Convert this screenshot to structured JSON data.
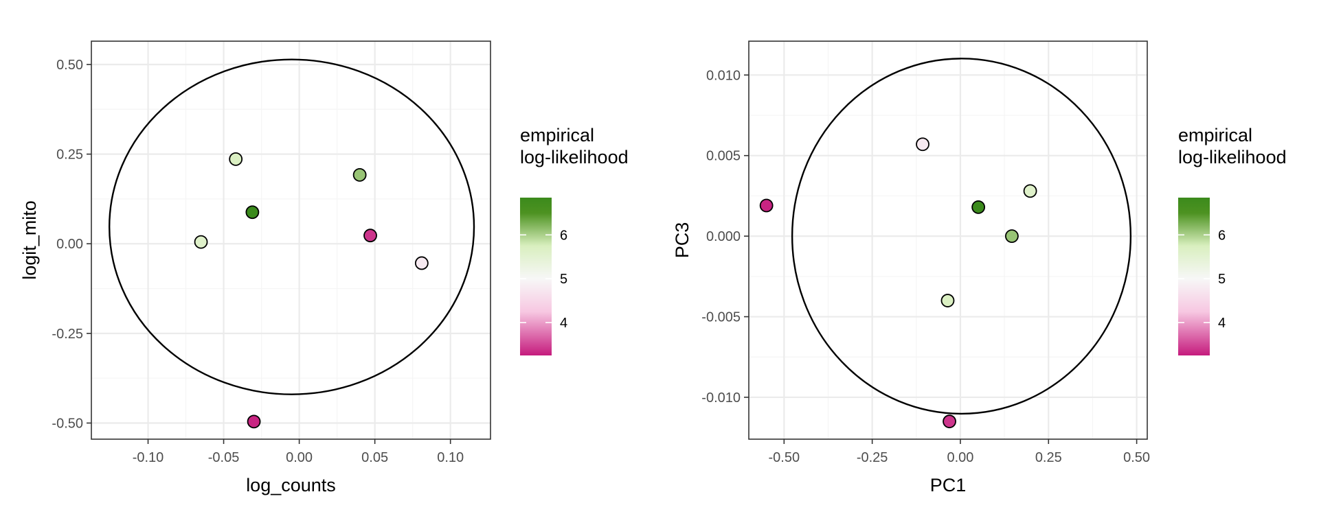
{
  "chart_data": [
    {
      "type": "scatter",
      "xlabel": "log_counts",
      "ylabel": "logit_mito",
      "xlim": [
        -0.1375,
        0.1265
      ],
      "ylim": [
        -0.545,
        0.565
      ],
      "xticks": [
        {
          "value": -0.1,
          "label": "-0.10"
        },
        {
          "value": -0.05,
          "label": "-0.05"
        },
        {
          "value": 0.0,
          "label": "0.00"
        },
        {
          "value": 0.05,
          "label": "0.05"
        },
        {
          "value": 0.1,
          "label": "0.10"
        }
      ],
      "yticks": [
        {
          "value": 0.5,
          "label": "0.50"
        },
        {
          "value": 0.25,
          "label": "0.25"
        },
        {
          "value": 0.0,
          "label": "0.00"
        },
        {
          "value": -0.25,
          "label": "-0.25"
        },
        {
          "value": -0.5,
          "label": "-0.50"
        }
      ],
      "grid": true,
      "ellipse": {
        "cx": -0.005,
        "cy": 0.047,
        "rx": 0.1206,
        "ry": 0.467
      },
      "points": [
        {
          "x": -0.042,
          "y": 0.236,
          "loglik": 5.7
        },
        {
          "x": 0.04,
          "y": 0.192,
          "loglik": 6.1
        },
        {
          "x": -0.031,
          "y": 0.088,
          "loglik": 6.85
        },
        {
          "x": -0.065,
          "y": 0.005,
          "loglik": 5.6
        },
        {
          "x": 0.047,
          "y": 0.023,
          "loglik": 3.4
        },
        {
          "x": 0.081,
          "y": -0.054,
          "loglik": 4.8
        },
        {
          "x": -0.03,
          "y": -0.496,
          "loglik": 3.3
        }
      ],
      "legend": {
        "title_lines": [
          "empirical",
          "log-likelihood"
        ],
        "range": [
          3.25,
          6.85
        ],
        "breaks": [
          {
            "value": 6,
            "label": "6"
          },
          {
            "value": 5,
            "label": "5"
          },
          {
            "value": 4,
            "label": "4"
          }
        ],
        "position": "right"
      }
    },
    {
      "type": "scatter",
      "xlabel": "PC1",
      "ylabel": "PC3",
      "xlim": [
        -0.6,
        0.53
      ],
      "ylim": [
        -0.0126,
        0.0121
      ],
      "xticks": [
        {
          "value": -0.5,
          "label": "-0.50"
        },
        {
          "value": -0.25,
          "label": "-0.25"
        },
        {
          "value": 0.0,
          "label": "0.00"
        },
        {
          "value": 0.25,
          "label": "0.25"
        },
        {
          "value": 0.5,
          "label": "0.50"
        }
      ],
      "yticks": [
        {
          "value": 0.01,
          "label": "0.010"
        },
        {
          "value": 0.005,
          "label": "0.005"
        },
        {
          "value": 0.0,
          "label": "0.000"
        },
        {
          "value": -0.005,
          "label": "-0.005"
        },
        {
          "value": -0.01,
          "label": "-0.010"
        }
      ],
      "grid": true,
      "ellipse": {
        "cx": 0.003,
        "cy": 0.0,
        "rx": 0.48,
        "ry": 0.01102
      },
      "points": [
        {
          "x": -0.107,
          "y": 0.0057,
          "loglik": 4.8
        },
        {
          "x": -0.55,
          "y": 0.0019,
          "loglik": 3.3
        },
        {
          "x": 0.051,
          "y": 0.0018,
          "loglik": 6.85
        },
        {
          "x": 0.198,
          "y": 0.0028,
          "loglik": 5.6
        },
        {
          "x": 0.146,
          "y": 0.0,
          "loglik": 6.1
        },
        {
          "x": -0.036,
          "y": -0.004,
          "loglik": 5.7
        },
        {
          "x": -0.031,
          "y": -0.0115,
          "loglik": 3.4
        }
      ],
      "legend": {
        "title_lines": [
          "empirical",
          "log-likelihood"
        ],
        "range": [
          3.25,
          6.85
        ],
        "breaks": [
          {
            "value": 6,
            "label": "6"
          },
          {
            "value": 5,
            "label": "5"
          },
          {
            "value": 4,
            "label": "4"
          }
        ],
        "position": "right"
      }
    }
  ],
  "colors": {
    "low": "#c51b7d",
    "mid_low": "#f7c8e2",
    "mid": "#f7f7f7",
    "mid_high": "#d9efbf",
    "high": "#4d9221",
    "top": "#3b8a1c",
    "grid_major": "#ebebeb",
    "grid_minor": "#f5f5f5",
    "panel_border": "#333333",
    "ellipse": "#000000"
  }
}
